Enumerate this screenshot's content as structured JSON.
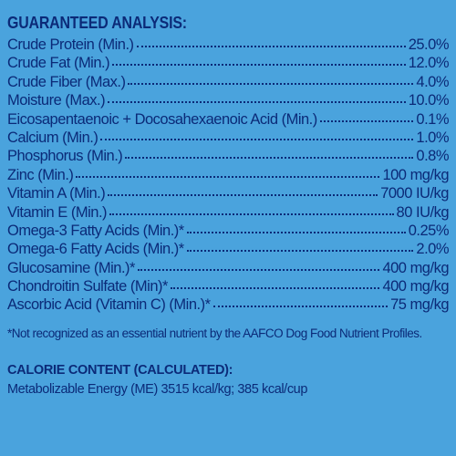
{
  "analysis": {
    "heading": "GUARANTEED ANALYSIS:",
    "rows": [
      {
        "label": "Crude Protein (Min.)",
        "value": "25.0%"
      },
      {
        "label": "Crude Fat (Min.)",
        "value": "12.0%"
      },
      {
        "label": "Crude Fiber (Max.)",
        "value": "4.0%"
      },
      {
        "label": "Moisture (Max.)",
        "value": "10.0%"
      },
      {
        "label": "Eicosapentaenoic + Docosahexaenoic Acid (Min.)",
        "value": "0.1%"
      },
      {
        "label": "Calcium (Min.)",
        "value": "1.0%"
      },
      {
        "label": "Phosphorus (Min.)",
        "value": "0.8%"
      },
      {
        "label": "Zinc (Min.)",
        "value": "100 mg/kg"
      },
      {
        "label": "Vitamin A (Min.)",
        "value": "7000 IU/kg"
      },
      {
        "label": "Vitamin E (Min.)",
        "value": "80 IU/kg"
      },
      {
        "label": "Omega-3 Fatty Acids (Min.)*",
        "value": "0.25%"
      },
      {
        "label": "Omega-6 Fatty Acids (Min.)*",
        "value": "2.0%"
      },
      {
        "label": "Glucosamine (Min.)*",
        "value": "400 mg/kg"
      },
      {
        "label": "Chondroitin Sulfate (Min)*",
        "value": "400 mg/kg"
      },
      {
        "label": "Ascorbic Acid (Vitamin C) (Min.)*",
        "value": "75 mg/kg"
      }
    ],
    "footnote": "*Not recognized as an essential nutrient by the AAFCO Dog Food Nutrient Profiles."
  },
  "calorie": {
    "heading": "CALORIE CONTENT (CALCULATED):",
    "line_part1": "Metabolizable Energy (ME) 3515 kcal/kg;",
    "line_part2": " 385 kcal/cup"
  },
  "colors": {
    "background": "#4aa3dd",
    "text": "#0b2a78"
  }
}
